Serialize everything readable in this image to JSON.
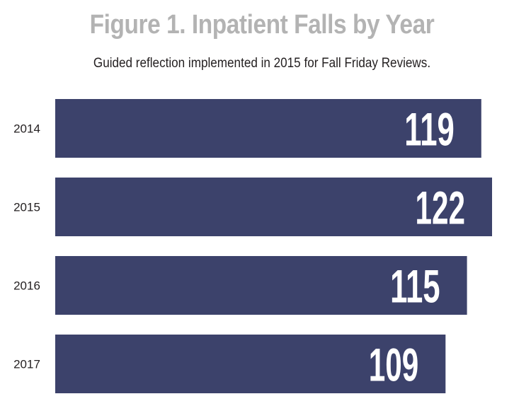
{
  "title": "Figure 1. Inpatient Falls by Year",
  "subtitle": "Guided reflection implemented in 2015 for Fall Friday Reviews.",
  "colors": {
    "bar": "#3c426b",
    "bar_label": "#ffffff",
    "title": "#b3b3b3",
    "text": "#231f20"
  },
  "chart_data": {
    "type": "bar",
    "orientation": "horizontal",
    "categories": [
      "2014",
      "2015",
      "2016",
      "2017"
    ],
    "values": [
      119,
      122,
      115,
      109
    ],
    "title": "Figure 1. Inpatient Falls by Year",
    "subtitle": "Guided reflection implemented in 2015 for Fall Friday Reviews.",
    "xlabel": "",
    "ylabel": "",
    "grid": false,
    "legend": "none",
    "data_labels": true
  }
}
